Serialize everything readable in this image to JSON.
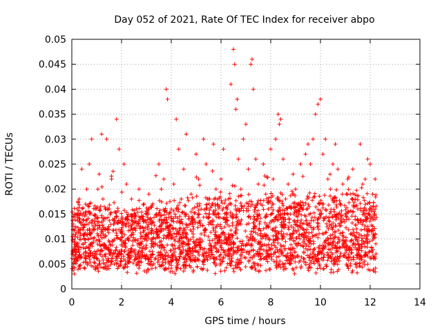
{
  "chart_data": {
    "type": "scatter",
    "title": "Day 052 of 2021, Rate Of TEC Index for receiver abpo",
    "xlabel": "GPS time / hours",
    "ylabel": "ROTI / TECUs",
    "xlim": [
      0,
      14
    ],
    "ylim": [
      0,
      0.05
    ],
    "x_ticks": [
      0,
      2,
      4,
      6,
      8,
      10,
      12,
      14
    ],
    "y_ticks": [
      0,
      0.005,
      0.01,
      0.015,
      0.02,
      0.025,
      0.03,
      0.035,
      0.04,
      0.045,
      0.05
    ],
    "x_tick_labels": [
      "0",
      "2",
      "4",
      "6",
      "8",
      "10",
      "12",
      "14"
    ],
    "y_tick_labels": [
      "0",
      "0.005",
      "0.01",
      "0.015",
      "0.02",
      "0.025",
      "0.03",
      "0.035",
      "0.04",
      "0.045",
      "0.05"
    ],
    "grid": true,
    "marker": "+",
    "marker_color": "#ff0000",
    "data_range_x": [
      0,
      12.25
    ],
    "series": [
      {
        "x": [
          0.05,
          0.1,
          0.15,
          0.2,
          0.3,
          0.35,
          0.4,
          0.5,
          0.55,
          0.6,
          0.7,
          0.75,
          0.8,
          0.9,
          0.95,
          1.0,
          1.05,
          1.1,
          1.2,
          1.25,
          1.3,
          1.35,
          1.4,
          1.5,
          1.6,
          1.7,
          1.8,
          1.9,
          1.95,
          2.0,
          2.1,
          2.2,
          2.3,
          2.4,
          2.5,
          2.6,
          2.7,
          2.8,
          2.9,
          3.0,
          3.1,
          3.2,
          3.3,
          3.4,
          3.5,
          3.6,
          3.7,
          3.8,
          3.85,
          3.9,
          4.0,
          4.1,
          4.2,
          4.3,
          4.4,
          4.5,
          4.6,
          4.7,
          4.8,
          4.9,
          5.0,
          5.1,
          5.2,
          5.3,
          5.4,
          5.5,
          5.6,
          5.7,
          5.8,
          5.9,
          6.0,
          6.1,
          6.2,
          6.3,
          6.4,
          6.5,
          6.55,
          6.6,
          6.65,
          6.7,
          6.8,
          6.9,
          7.0,
          7.1,
          7.2,
          7.25,
          7.3,
          7.4,
          7.5,
          7.6,
          7.7,
          7.8,
          7.9,
          8.0,
          8.1,
          8.2,
          8.3,
          8.35,
          8.4,
          8.5,
          8.6,
          8.7,
          8.8,
          8.9,
          9.0,
          9.1,
          9.2,
          9.3,
          9.4,
          9.5,
          9.6,
          9.7,
          9.8,
          9.9,
          10.0,
          10.1,
          10.2,
          10.3,
          10.4,
          10.5,
          10.6,
          10.7,
          10.8,
          10.9,
          11.0,
          11.1,
          11.2,
          11.3,
          11.4,
          11.5,
          11.6,
          11.7,
          11.8,
          11.9,
          12.0,
          12.1,
          12.2
        ],
        "y": [
          0.013,
          0.003,
          0.008,
          0.015,
          0.018,
          0.012,
          0.024,
          0.01,
          0.006,
          0.02,
          0.025,
          0.009,
          0.03,
          0.012,
          0.016,
          0.007,
          0.02,
          0.023,
          0.031,
          0.018,
          0.009,
          0.012,
          0.03,
          0.016,
          0.022,
          0.013,
          0.034,
          0.028,
          0.01,
          0.014,
          0.025,
          0.021,
          0.006,
          0.018,
          0.012,
          0.016,
          0.02,
          0.009,
          0.017,
          0.011,
          0.019,
          0.013,
          0.005,
          0.015,
          0.025,
          0.02,
          0.022,
          0.04,
          0.038,
          0.011,
          0.016,
          0.021,
          0.034,
          0.028,
          0.018,
          0.024,
          0.031,
          0.014,
          0.019,
          0.012,
          0.027,
          0.022,
          0.016,
          0.03,
          0.025,
          0.018,
          0.013,
          0.029,
          0.02,
          0.015,
          0.022,
          0.028,
          0.014,
          0.018,
          0.041,
          0.048,
          0.045,
          0.036,
          0.038,
          0.026,
          0.02,
          0.03,
          0.033,
          0.024,
          0.045,
          0.046,
          0.04,
          0.026,
          0.021,
          0.017,
          0.025,
          0.019,
          0.016,
          0.028,
          0.022,
          0.03,
          0.035,
          0.033,
          0.034,
          0.026,
          0.018,
          0.021,
          0.015,
          0.023,
          0.02,
          0.017,
          0.025,
          0.012,
          0.027,
          0.029,
          0.025,
          0.03,
          0.035,
          0.037,
          0.038,
          0.027,
          0.03,
          0.022,
          0.02,
          0.025,
          0.029,
          0.024,
          0.017,
          0.021,
          0.015,
          0.022,
          0.019,
          0.024,
          0.018,
          0.016,
          0.029,
          0.021,
          0.022,
          0.026,
          0.025,
          0.019,
          0.022
        ]
      }
    ]
  }
}
